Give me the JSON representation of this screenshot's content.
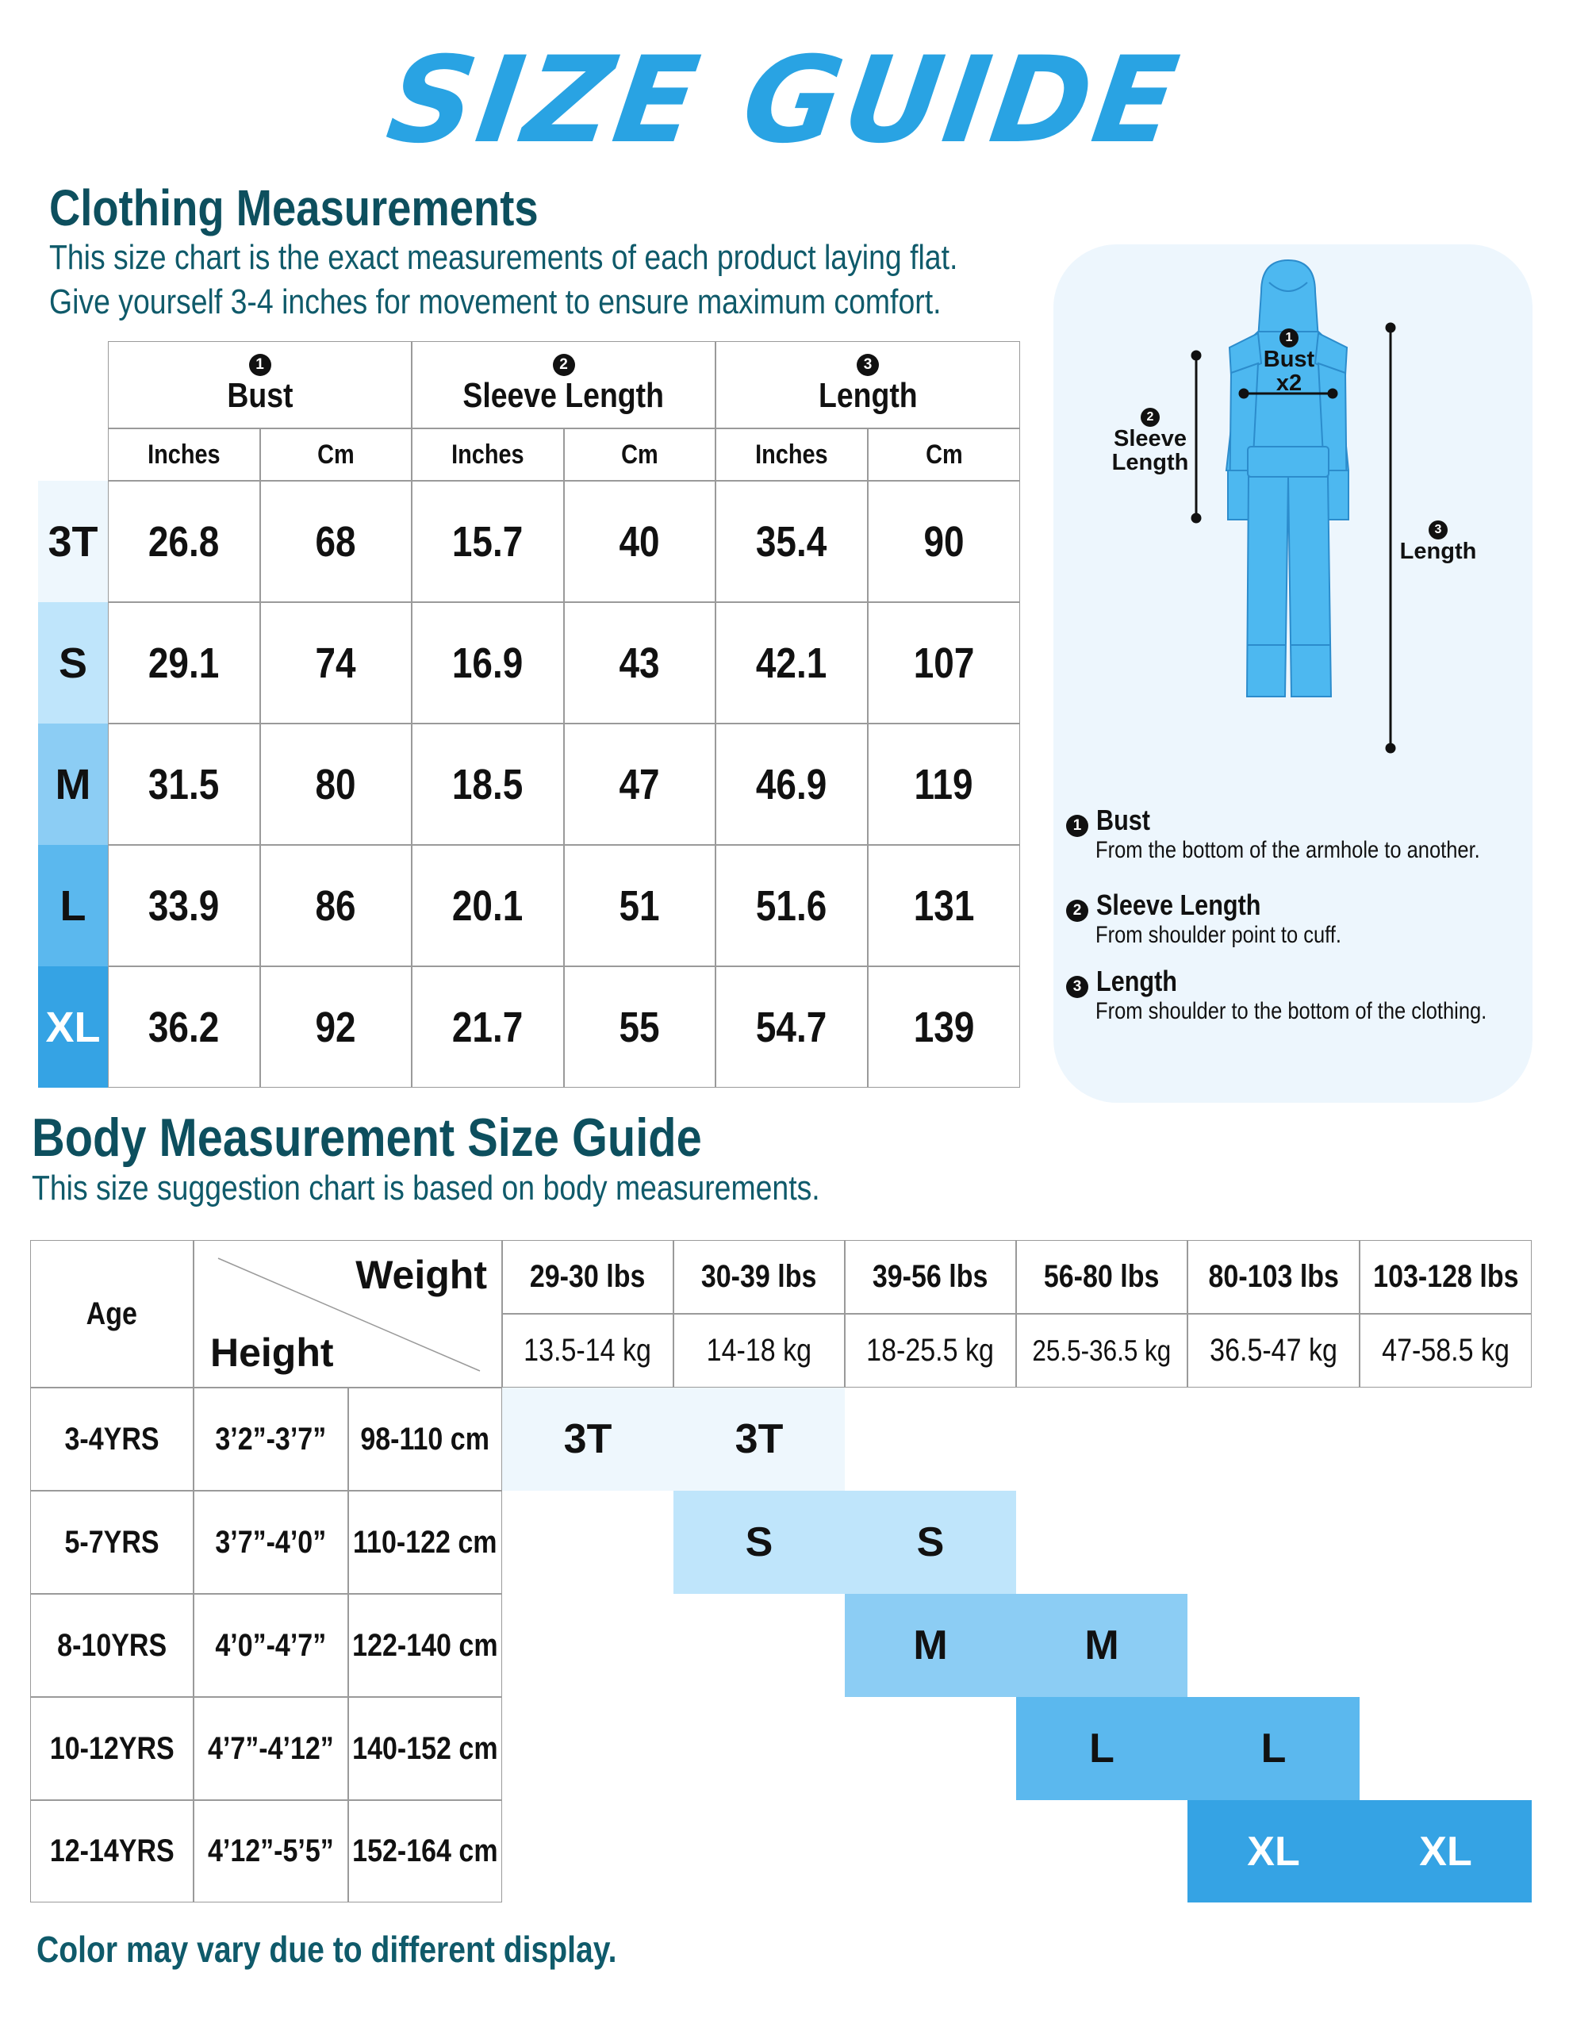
{
  "title": "SIZE GUIDE",
  "clothing": {
    "heading": "Clothing Measurements",
    "desc_line1": "This size chart is the exact measurements of each product laying flat.",
    "desc_line2": "Give yourself 3-4 inches for movement to ensure maximum comfort.",
    "groups": [
      {
        "num": "1",
        "label": "Bust"
      },
      {
        "num": "2",
        "label": "Sleeve Length"
      },
      {
        "num": "3",
        "label": "Length"
      }
    ],
    "units": [
      "Inches",
      "Cm",
      "Inches",
      "Cm",
      "Inches",
      "Cm"
    ],
    "rows": [
      {
        "size": "3T",
        "values": [
          "26.8",
          "68",
          "15.7",
          "40",
          "35.4",
          "90"
        ]
      },
      {
        "size": "S",
        "values": [
          "29.1",
          "74",
          "16.9",
          "43",
          "42.1",
          "107"
        ]
      },
      {
        "size": "M",
        "values": [
          "31.5",
          "80",
          "18.5",
          "47",
          "46.9",
          "119"
        ]
      },
      {
        "size": "L",
        "values": [
          "33.9",
          "86",
          "20.1",
          "51",
          "51.6",
          "131"
        ]
      },
      {
        "size": "XL",
        "values": [
          "36.2",
          "92",
          "21.7",
          "55",
          "54.7",
          "139"
        ]
      }
    ]
  },
  "size_colors": {
    "3T": "#eef7fd",
    "S": "#bfe5fb",
    "M": "#8ccdf4",
    "L": "#5bb8ee",
    "XL": "#35a3e4"
  },
  "diagram": {
    "bust_num": "1",
    "bust_label": "Bust",
    "bust_x2": "x2",
    "sleeve_num": "2",
    "sleeve_label_1": "Sleeve",
    "sleeve_label_2": "Length",
    "length_num": "3",
    "length_label": "Length",
    "garment_color": "#4db8f0",
    "definitions": [
      {
        "num": "1",
        "title": "Bust",
        "text": "From the bottom of the armhole to another."
      },
      {
        "num": "2",
        "title": "Sleeve Length",
        "text": "From shoulder point to cuff."
      },
      {
        "num": "3",
        "title": "Length",
        "text": "From shoulder to the bottom of the clothing."
      }
    ]
  },
  "body": {
    "heading": "Body Measurement Size Guide",
    "desc": "This size suggestion chart is based on body measurements.",
    "age_header": "Age",
    "weight_header": "Weight",
    "height_header": "Height",
    "weights_lbs": [
      "29-30 lbs",
      "30-39 lbs",
      "39-56 lbs",
      "56-80 lbs",
      "80-103 lbs",
      "103-128 lbs"
    ],
    "weights_kg": [
      "13.5-14 kg",
      "14-18 kg",
      "18-25.5 kg",
      "25.5-36.5 kg",
      "36.5-47 kg",
      "47-58.5 kg"
    ],
    "rows": [
      {
        "age": "3-4YRS",
        "height_ft": "3’2”-3’7”",
        "height_cm": "98-110 cm",
        "size": "3T",
        "start": 0
      },
      {
        "age": "5-7YRS",
        "height_ft": "3’7”-4’0”",
        "height_cm": "110-122 cm",
        "size": "S",
        "start": 1
      },
      {
        "age": "8-10YRS",
        "height_ft": "4’0”-4’7”",
        "height_cm": "122-140 cm",
        "size": "M",
        "start": 2
      },
      {
        "age": "10-12YRS",
        "height_ft": "4’7”-4’12”",
        "height_cm": "140-152 cm",
        "size": "L",
        "start": 3
      },
      {
        "age": "12-14YRS",
        "height_ft": "4’12”-5’5”",
        "height_cm": "152-164 cm",
        "size": "XL",
        "start": 4
      }
    ]
  },
  "footer": "Color may vary due to different display."
}
